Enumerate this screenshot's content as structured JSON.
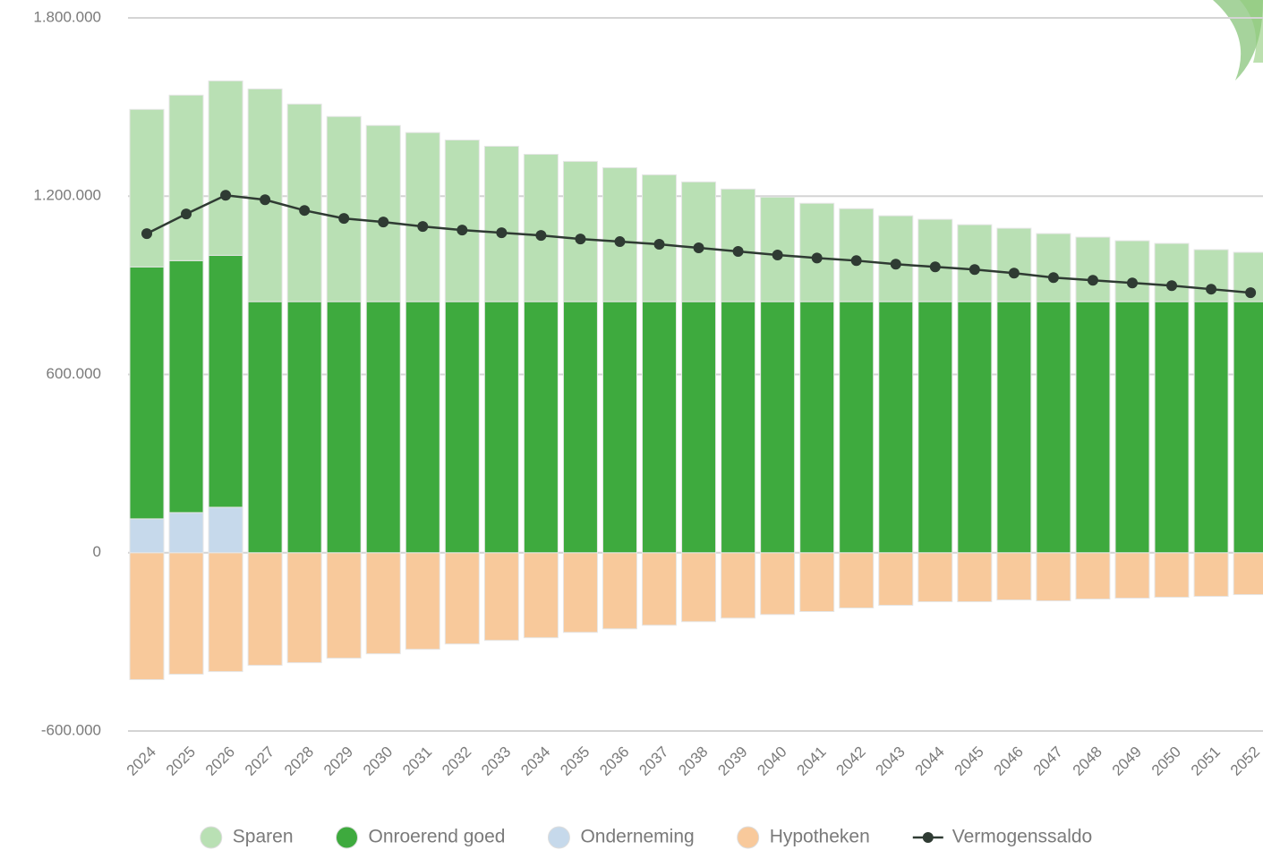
{
  "chart_data": {
    "type": "bar",
    "stacked": true,
    "grid": true,
    "categories": [
      "2024",
      "2025",
      "2026",
      "2027",
      "2028",
      "2029",
      "2030",
      "2031",
      "2032",
      "2033",
      "2034",
      "2035",
      "2036",
      "2037",
      "2038",
      "2039",
      "2040",
      "2041",
      "2042",
      "2043",
      "2044",
      "2045",
      "2046",
      "2047",
      "2048",
      "2049",
      "2050",
      "2051",
      "2052"
    ],
    "series": [
      {
        "name": "Sparen",
        "color": "#b9e0b4",
        "values": [
          530000,
          557000,
          587000,
          716000,
          665000,
          623000,
          593000,
          569000,
          544000,
          523000,
          496000,
          472000,
          451000,
          427000,
          403000,
          379000,
          352000,
          331000,
          313000,
          289000,
          277000,
          259000,
          247000,
          229000,
          217000,
          205000,
          196000,
          175000,
          166000
        ]
      },
      {
        "name": "Onroerend goed",
        "color": "#3eaa3e",
        "values": [
          848000,
          848000,
          848000,
          845000,
          845000,
          845000,
          845000,
          845000,
          845000,
          845000,
          845000,
          845000,
          845000,
          845000,
          845000,
          845000,
          845000,
          845000,
          845000,
          845000,
          845000,
          845000,
          845000,
          845000,
          845000,
          845000,
          845000,
          845000,
          845000
        ]
      },
      {
        "name": "Onderneming",
        "color": "#c6d9eb",
        "values": [
          114000,
          135000,
          153000,
          0,
          0,
          0,
          0,
          0,
          0,
          0,
          0,
          0,
          0,
          0,
          0,
          0,
          0,
          0,
          0,
          0,
          0,
          0,
          0,
          0,
          0,
          0,
          0,
          0,
          0
        ]
      },
      {
        "name": "Hypotheken",
        "color": "#f8c99b",
        "values": [
          -427000,
          -409000,
          -400000,
          -379000,
          -370000,
          -355000,
          -340000,
          -325000,
          -307000,
          -295000,
          -286000,
          -268000,
          -256000,
          -244000,
          -232000,
          -220000,
          -208000,
          -198000,
          -186000,
          -177000,
          -165000,
          -165000,
          -159000,
          -162000,
          -156000,
          -153000,
          -150000,
          -147000,
          -141000
        ]
      },
      {
        "name": "Vermogenssaldo",
        "color": "#2f3b33",
        "type": "line",
        "values": [
          1074000,
          1140000,
          1203000,
          1188000,
          1152000,
          1125000,
          1113000,
          1098000,
          1086000,
          1077000,
          1068000,
          1056000,
          1047000,
          1038000,
          1026000,
          1014000,
          1002000,
          992000,
          983000,
          971000,
          962000,
          953000,
          941000,
          926000,
          917000,
          908000,
          899000,
          887000,
          875000
        ]
      }
    ],
    "ylim": [
      -600000,
      1800000
    ],
    "yticks": [
      {
        "value": -600000,
        "label": "-600.000"
      },
      0,
      {
        "value": 600000,
        "label": "600.000"
      },
      {
        "value": 1200000,
        "label": "1.200.000"
      },
      {
        "value": 1800000,
        "label": "1.800.000"
      }
    ]
  }
}
